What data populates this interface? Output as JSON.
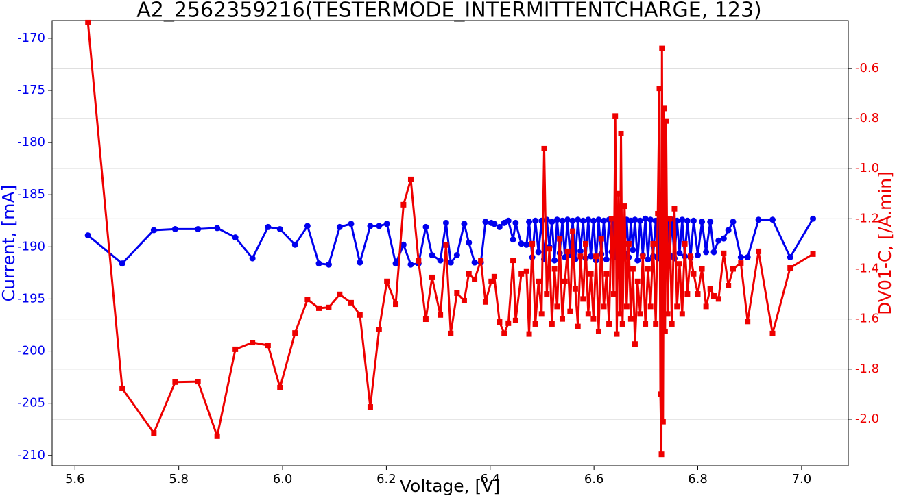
{
  "chart_data": {
    "type": "line",
    "title": "A2_2562359216(TESTERMODE_INTERMITTENTCHARGE, 123)",
    "xlabel": "Voltage, [V]",
    "ylabel": "Current, [mA]",
    "y2label": "DV01-C, [/A.min]",
    "x": [
      5.625,
      5.691,
      5.752,
      5.793,
      5.837,
      5.874,
      5.909,
      5.942,
      5.972,
      5.995,
      6.024,
      6.048,
      6.07,
      6.089,
      6.11,
      6.132,
      6.149,
      6.169,
      6.186,
      6.201,
      6.218,
      6.233,
      6.247,
      6.262,
      6.276,
      6.288,
      6.304,
      6.315,
      6.324,
      6.336,
      6.35,
      6.359,
      6.37,
      6.382,
      6.391,
      6.402,
      6.408,
      6.418,
      6.427,
      6.435,
      6.444,
      6.449,
      6.46,
      6.47,
      6.475,
      6.481,
      6.487,
      6.493,
      6.499,
      6.504,
      6.509,
      6.514,
      6.519,
      6.524,
      6.529,
      6.534,
      6.539,
      6.544,
      6.549,
      6.554,
      6.559,
      6.564,
      6.569,
      6.574,
      6.579,
      6.584,
      6.589,
      6.594,
      6.599,
      6.604,
      6.609,
      6.614,
      6.619,
      6.624,
      6.629,
      6.634,
      6.638,
      6.641,
      6.644,
      6.647,
      6.65,
      6.652,
      6.655,
      6.659,
      6.663,
      6.667,
      6.671,
      6.675,
      6.679,
      6.684,
      6.689,
      6.694,
      6.699,
      6.704,
      6.709,
      6.714,
      6.719,
      6.723,
      6.726,
      6.728,
      6.73,
      6.731,
      6.733,
      6.735,
      6.737,
      6.739,
      6.742,
      6.746,
      6.75,
      6.755,
      6.76,
      6.765,
      6.77,
      6.775,
      6.78,
      6.786,
      6.792,
      6.8,
      6.808,
      6.816,
      6.824,
      6.831,
      6.84,
      6.85,
      6.859,
      6.868,
      6.883,
      6.896,
      6.917,
      6.944,
      6.978,
      7.022
    ],
    "series": [
      {
        "color": "#0000ee",
        "marker": "circle",
        "axis": "y",
        "values": [
          -188.9,
          -191.6,
          -188.4,
          -188.3,
          -188.3,
          -188.2,
          -189.1,
          -191.1,
          -188.1,
          -188.3,
          -189.8,
          -188.0,
          -191.6,
          -191.7,
          -188.1,
          -187.8,
          -191.5,
          -188.0,
          -188.0,
          -187.8,
          -191.6,
          -189.8,
          -191.7,
          -191.6,
          -188.1,
          -190.8,
          -191.3,
          -187.7,
          -191.5,
          -190.8,
          -187.8,
          -189.6,
          -191.5,
          -191.5,
          -187.6,
          -187.7,
          -187.8,
          -188.1,
          -187.7,
          -187.5,
          -189.3,
          -187.7,
          -189.7,
          -189.8,
          -187.6,
          -191.0,
          -187.5,
          -190.5,
          -187.5,
          -191.2,
          -187.4,
          -190.0,
          -187.6,
          -191.3,
          -187.4,
          -190.6,
          -187.5,
          -191.0,
          -187.4,
          -190.8,
          -187.5,
          -191.2,
          -187.4,
          -190.4,
          -187.5,
          -191.1,
          -187.4,
          -190.9,
          -187.5,
          -191.3,
          -187.4,
          -190.7,
          -187.5,
          -191.2,
          -187.4,
          -190.5,
          -187.5,
          -191.0,
          -187.5,
          -190.8,
          -187.4,
          -191.2,
          -187.5,
          -190.6,
          -187.4,
          -191.0,
          -187.5,
          -190.3,
          -187.4,
          -191.3,
          -187.5,
          -190.8,
          -187.3,
          -191.2,
          -187.4,
          -190.9,
          -187.5,
          -191.1,
          -187.4,
          -190.6,
          -187.5,
          -191.2,
          -187.4,
          -190.7,
          -187.5,
          -191.0,
          -187.4,
          -190.8,
          -187.4,
          -191.1,
          -187.5,
          -190.6,
          -187.4,
          -190.9,
          -187.5,
          -191.0,
          -187.5,
          -190.8,
          -187.6,
          -190.5,
          -187.6,
          -190.5,
          -189.4,
          -189.2,
          -188.4,
          -187.6,
          -191.0,
          -191.0,
          -187.4,
          -187.4,
          -191.0,
          -187.3
        ]
      },
      {
        "color": "#ee0000",
        "marker": "square",
        "axis": "y2",
        "values": [
          -0.417,
          -1.877,
          -2.055,
          -1.852,
          -1.85,
          -2.068,
          -1.721,
          -1.694,
          -1.705,
          -1.874,
          -1.656,
          -1.522,
          -1.557,
          -1.554,
          -1.502,
          -1.535,
          -1.584,
          -1.951,
          -1.642,
          -1.45,
          -1.541,
          -1.144,
          -1.043,
          -1.368,
          -1.601,
          -1.434,
          -1.584,
          -1.305,
          -1.658,
          -1.497,
          -1.527,
          -1.42,
          -1.442,
          -1.366,
          -1.532,
          -1.45,
          -1.431,
          -1.612,
          -1.658,
          -1.617,
          -1.366,
          -1.606,
          -1.42,
          -1.409,
          -1.66,
          -1.3,
          -1.62,
          -1.45,
          -1.58,
          -0.92,
          -1.5,
          -1.32,
          -1.62,
          -1.4,
          -1.55,
          -1.28,
          -1.6,
          -1.45,
          -1.33,
          -1.57,
          -1.25,
          -1.48,
          -1.63,
          -1.35,
          -1.52,
          -1.3,
          -1.58,
          -1.42,
          -1.6,
          -1.35,
          -1.65,
          -1.28,
          -1.55,
          -1.42,
          -1.62,
          -1.2,
          -1.5,
          -0.79,
          -1.66,
          -1.1,
          -1.58,
          -0.86,
          -1.62,
          -1.15,
          -1.55,
          -1.3,
          -1.6,
          -1.4,
          -1.7,
          -1.45,
          -1.58,
          -1.35,
          -1.62,
          -1.4,
          -1.55,
          -1.3,
          -1.62,
          -1.18,
          -0.68,
          -1.9,
          -2.14,
          -0.52,
          -2.01,
          -0.76,
          -1.65,
          -0.81,
          -1.58,
          -1.2,
          -1.62,
          -1.16,
          -1.55,
          -1.38,
          -1.58,
          -1.3,
          -1.5,
          -1.35,
          -1.42,
          -1.5,
          -1.4,
          -1.55,
          -1.48,
          -1.508,
          -1.52,
          -1.338,
          -1.467,
          -1.4,
          -1.377,
          -1.61,
          -1.33,
          -1.658,
          -1.396,
          -1.341
        ]
      }
    ],
    "xlim": [
      5.556,
      7.09
    ],
    "ylim": [
      -211,
      -168.3
    ],
    "y2lim": [
      -2.186,
      -0.409
    ],
    "xticks": [
      5.6,
      5.8,
      {
        "value": 6,
        "label": "6.0"
      },
      6.2,
      6.4,
      6.6,
      6.8,
      {
        "value": 7,
        "label": "7.0"
      }
    ],
    "yticks": [
      -170,
      -175,
      -180,
      -185,
      -190,
      -195,
      -200,
      -205,
      -210
    ],
    "y2ticks": [
      -0.6,
      -0.8,
      {
        "value": -1,
        "label": "-1.0"
      },
      -1.2,
      -1.4,
      -1.6,
      -1.8,
      {
        "value": -2,
        "label": "-2.0"
      }
    ],
    "grid": "y2",
    "ycolor": "#0000ee",
    "y2color": "#ee0000"
  }
}
